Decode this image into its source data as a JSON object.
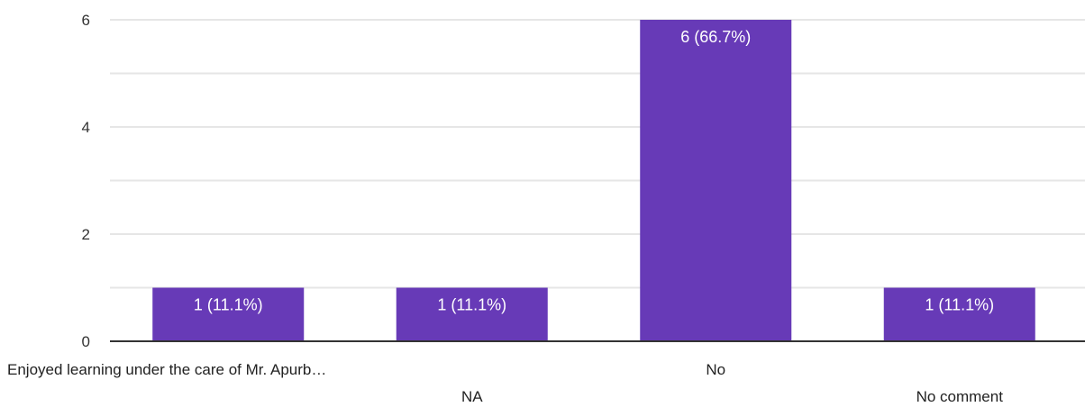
{
  "chart_data": {
    "type": "bar",
    "categories": [
      "Enjoyed learning under the care of Mr. Apurb…",
      "NA",
      "No",
      "No comment"
    ],
    "values": [
      1,
      1,
      6,
      1
    ],
    "data_labels": [
      "1 (11.1%)",
      "1 (11.1%)",
      "6 (66.7%)",
      "1 (11.1%)"
    ],
    "y_ticks": [
      "0",
      "2",
      "4",
      "6"
    ],
    "ylim": [
      0,
      6
    ],
    "title": "",
    "xlabel": "",
    "ylabel": "",
    "grid": true,
    "legend": "none",
    "colors": {
      "bar": "#673ab7",
      "grid": "#e6e6e6",
      "axis": "#333333"
    }
  }
}
